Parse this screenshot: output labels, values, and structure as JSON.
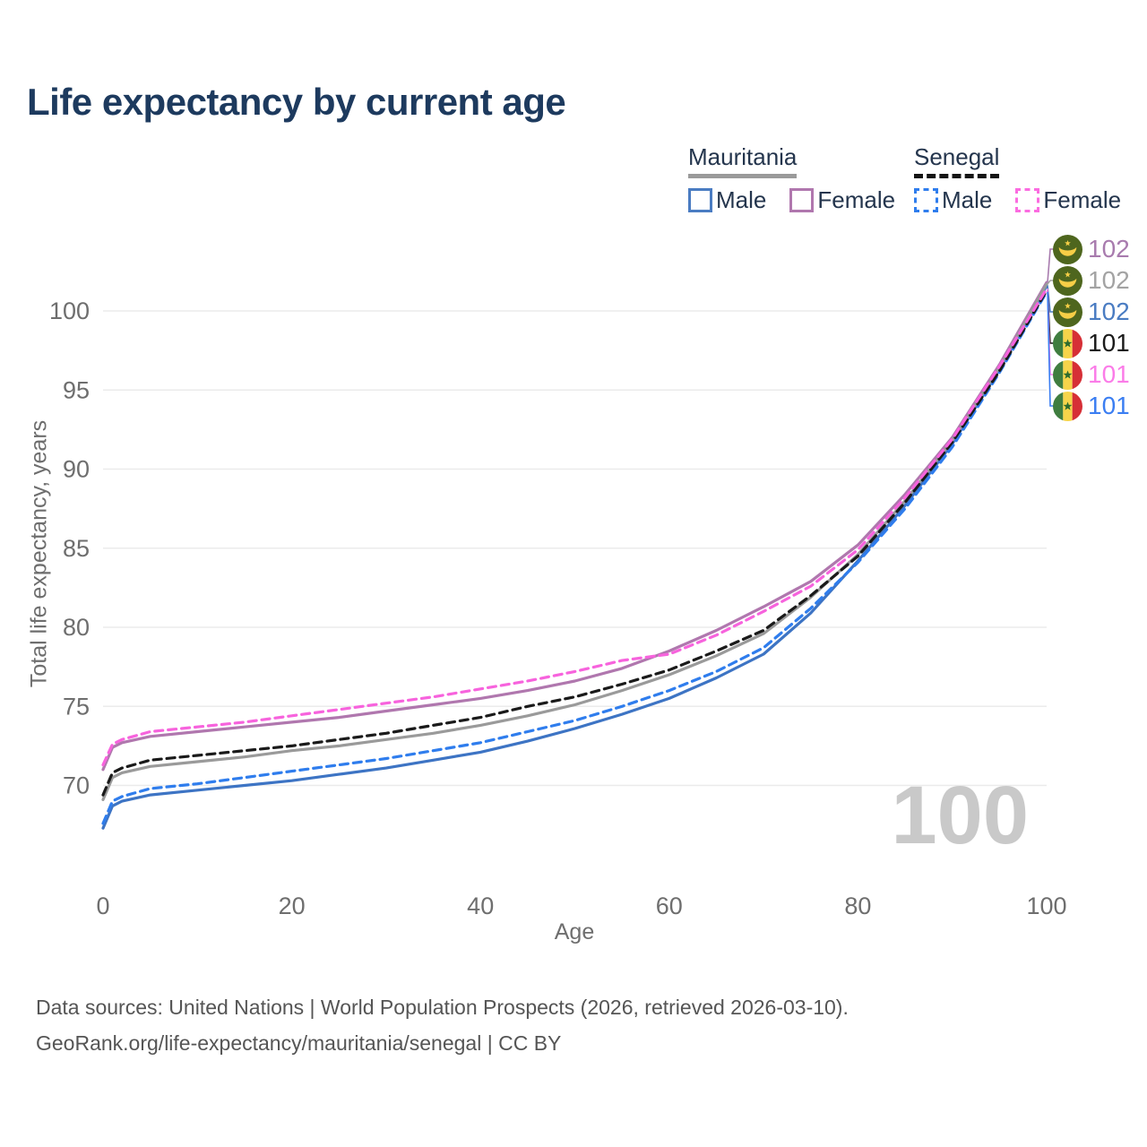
{
  "title": {
    "text": "Life expectancy by current age",
    "color": "#1d3a5e"
  },
  "legend": {
    "groups": [
      {
        "name": "Mauritania",
        "line_style": "solid",
        "line_color": "#9a9a9a",
        "items": [
          {
            "label": "Male",
            "color": "#4a7cc2",
            "dashed": false
          },
          {
            "label": "Female",
            "color": "#b077ae",
            "dashed": false
          }
        ]
      },
      {
        "name": "Senegal",
        "line_style": "dashed",
        "line_color": "#141414",
        "items": [
          {
            "label": "Male",
            "color": "#2f7ded",
            "dashed": true
          },
          {
            "label": "Female",
            "color": "#fb6ce0",
            "dashed": true
          }
        ]
      }
    ]
  },
  "axes": {
    "y_title": "Total life expectancy, years",
    "x_title": "Age",
    "y_ticks": [
      70,
      75,
      80,
      85,
      90,
      95,
      100
    ],
    "x_ticks": [
      0,
      20,
      40,
      60,
      80,
      100
    ]
  },
  "watermark": {
    "text": "100"
  },
  "footer": {
    "line1": "Data sources: United Nations | World Population Prospects (2026, retrieved 2026-03-10).",
    "line2": "GeoRank.org/life-expectancy/mauritania/senegal | CC BY"
  },
  "chart_data": {
    "type": "line",
    "title": "Life expectancy by current age",
    "xlabel": "Age",
    "ylabel": "Total life expectancy, years",
    "xlim": [
      0,
      100
    ],
    "ylim": [
      66.5,
      103
    ],
    "grid": "horizontal",
    "x": [
      0,
      1,
      2,
      5,
      10,
      15,
      20,
      25,
      30,
      35,
      40,
      45,
      50,
      55,
      60,
      65,
      70,
      75,
      80,
      85,
      90,
      95,
      100
    ],
    "series": [
      {
        "id": "mauritania-male",
        "name": "Mauritania Male",
        "country": "Mauritania",
        "sex": "Male",
        "color": "#3d74c4",
        "dashed": false,
        "values": [
          67.3,
          68.7,
          69.0,
          69.4,
          69.7,
          70.0,
          70.3,
          70.7,
          71.1,
          71.6,
          72.1,
          72.8,
          73.6,
          74.5,
          75.5,
          76.8,
          78.3,
          80.9,
          84.2,
          87.7,
          91.6,
          96.3,
          101.6
        ]
      },
      {
        "id": "mauritania-female",
        "name": "Mauritania Female",
        "country": "Mauritania",
        "sex": "Female",
        "color": "#b077ae",
        "dashed": false,
        "values": [
          71.0,
          72.4,
          72.7,
          73.1,
          73.4,
          73.7,
          74.0,
          74.3,
          74.7,
          75.1,
          75.5,
          76.0,
          76.6,
          77.4,
          78.5,
          79.8,
          81.3,
          82.9,
          85.2,
          88.4,
          92.0,
          96.6,
          101.8
        ]
      },
      {
        "id": "mauritania-both",
        "name": "Mauritania Both sexes",
        "country": "Mauritania",
        "sex": "Both",
        "color": "#9a9a9a",
        "dashed": false,
        "values": [
          69.1,
          70.5,
          70.8,
          71.2,
          71.5,
          71.8,
          72.2,
          72.5,
          72.9,
          73.3,
          73.8,
          74.4,
          75.1,
          76.0,
          77.0,
          78.2,
          79.6,
          81.9,
          84.6,
          88.0,
          91.8,
          96.4,
          101.7
        ]
      },
      {
        "id": "senegal-male",
        "name": "Senegal Male",
        "country": "Senegal",
        "sex": "Male",
        "color": "#2f7ded",
        "dashed": true,
        "values": [
          67.6,
          69.0,
          69.3,
          69.8,
          70.1,
          70.5,
          70.9,
          71.3,
          71.7,
          72.2,
          72.7,
          73.4,
          74.1,
          75.0,
          76.0,
          77.2,
          78.7,
          81.2,
          84.1,
          87.5,
          91.4,
          96.1,
          101.2
        ]
      },
      {
        "id": "senegal-both",
        "name": "Senegal Both sexes",
        "country": "Senegal",
        "sex": "Both",
        "color": "#1a1a1a",
        "dashed": true,
        "values": [
          69.4,
          70.8,
          71.1,
          71.6,
          71.9,
          72.2,
          72.5,
          72.9,
          73.3,
          73.8,
          74.3,
          75.0,
          75.6,
          76.4,
          77.3,
          78.5,
          79.8,
          82.0,
          84.5,
          87.9,
          91.7,
          96.2,
          101.3
        ]
      },
      {
        "id": "senegal-female",
        "name": "Senegal Female",
        "country": "Senegal",
        "sex": "Female",
        "color": "#f763dd",
        "dashed": true,
        "values": [
          71.3,
          72.6,
          72.9,
          73.4,
          73.7,
          74.0,
          74.4,
          74.8,
          75.2,
          75.6,
          76.1,
          76.6,
          77.2,
          77.9,
          78.3,
          79.5,
          81.0,
          82.6,
          84.9,
          88.2,
          91.9,
          96.5,
          101.4
        ]
      }
    ],
    "end_labels": [
      {
        "series": "Mauritania Female",
        "country": "Mauritania",
        "text": "102",
        "color": "#a87bae",
        "value": 101.8
      },
      {
        "series": "Mauritania Both sexes",
        "country": "Mauritania",
        "text": "102",
        "color": "#a3a3a3",
        "value": 101.7
      },
      {
        "series": "Mauritania Male",
        "country": "Mauritania",
        "text": "102",
        "color": "#4a7cc2",
        "value": 101.6
      },
      {
        "series": "Senegal Both sexes",
        "country": "Senegal",
        "text": "101",
        "color": "#1a1a1a",
        "value": 101.3
      },
      {
        "series": "Senegal Female",
        "country": "Senegal",
        "text": "101",
        "color": "#fb7ce8",
        "value": 101.4
      },
      {
        "series": "Senegal Male",
        "country": "Senegal",
        "text": "101",
        "color": "#3b7ef2",
        "value": 101.2
      }
    ],
    "legend_position": "top-right"
  }
}
